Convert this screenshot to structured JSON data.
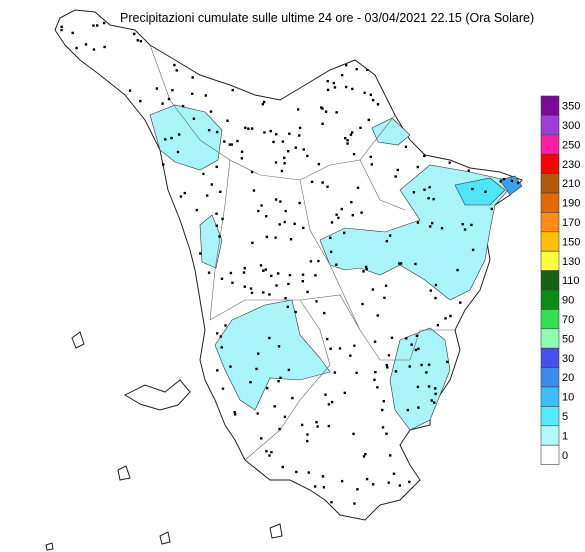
{
  "title": "Precipitazioni cumulate sulle ultime 24 ore - 03/04/2021 22.15 (Ora Solare)",
  "legend": {
    "levels": [
      {
        "label": 350,
        "color": "#7a0a96"
      },
      {
        "label": 300,
        "color": "#9c3fd6"
      },
      {
        "label": 250,
        "color": "#ff1ca6"
      },
      {
        "label": 230,
        "color": "#ff0000"
      },
      {
        "label": 210,
        "color": "#b05a0a"
      },
      {
        "label": 190,
        "color": "#e06a00"
      },
      {
        "label": 170,
        "color": "#ff8c10"
      },
      {
        "label": 150,
        "color": "#ffc000"
      },
      {
        "label": 130,
        "color": "#ffff3c"
      },
      {
        "label": 110,
        "color": "#146414"
      },
      {
        "label": 90,
        "color": "#0a8c14"
      },
      {
        "label": 70,
        "color": "#30e050"
      },
      {
        "label": 50,
        "color": "#8cffb0"
      },
      {
        "label": 30,
        "color": "#4650f0"
      },
      {
        "label": 20,
        "color": "#3c8cf0"
      },
      {
        "label": 10,
        "color": "#3cbef8"
      },
      {
        "label": 5,
        "color": "#50ecf8"
      },
      {
        "label": 1,
        "color": "#b4f8fa"
      },
      {
        "label": 0,
        "color": "#ffffff"
      }
    ]
  }
}
